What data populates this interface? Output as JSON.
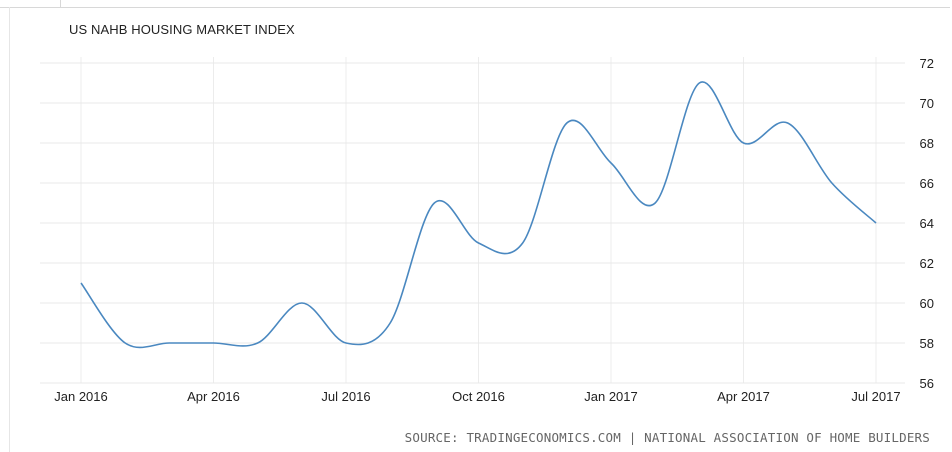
{
  "chart_data": {
    "type": "line",
    "title": "US NAHB HOUSING MARKET INDEX",
    "source": "SOURCE: TRADINGECONOMICS.COM | NATIONAL ASSOCIATION OF HOME BUILDERS",
    "x": [
      "Jan 2016",
      "Feb 2016",
      "Mar 2016",
      "Apr 2016",
      "May 2016",
      "Jun 2016",
      "Jul 2016",
      "Aug 2016",
      "Sep 2016",
      "Oct 2016",
      "Nov 2016",
      "Dec 2016",
      "Jan 2017",
      "Feb 2017",
      "Mar 2017",
      "Apr 2017",
      "May 2017",
      "Jun 2017",
      "Jul 2017"
    ],
    "xticks": [
      "Jan 2016",
      "Apr 2016",
      "Jul 2016",
      "Oct 2016",
      "Jan 2017",
      "Apr 2017",
      "Jul 2017"
    ],
    "series": [
      {
        "values": [
          61,
          58,
          58,
          58,
          58,
          60,
          58,
          59,
          65,
          63,
          63,
          69,
          67,
          65,
          71,
          68,
          69,
          66,
          64
        ]
      }
    ],
    "ylim": [
      56,
      72
    ],
    "yticks": [
      56,
      58,
      60,
      62,
      64,
      66,
      68,
      70,
      72
    ],
    "grid": true,
    "line_color": "#4a88c0"
  }
}
